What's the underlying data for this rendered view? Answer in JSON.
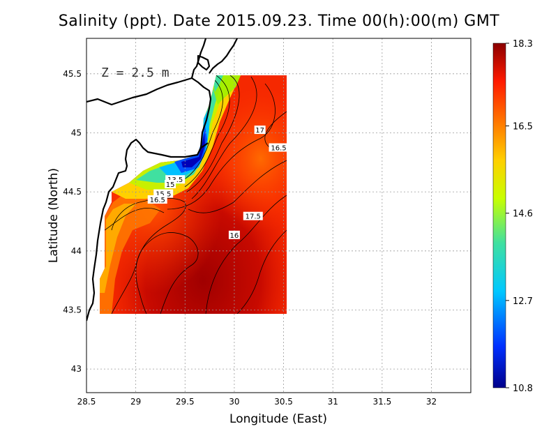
{
  "title": "Salinity (ppt). Date 2015.09.23. Time 00(h):00(m) GMT",
  "depth_label": "Z = 2.5 m",
  "chart_data": {
    "type": "heatmap",
    "title": "Salinity (ppt). Date 2015.09.23. Time 00(h):00(m) GMT",
    "xlabel": "Longitude (East)",
    "ylabel": "Latitude (North)",
    "xlim": [
      28.5,
      32.4
    ],
    "ylim": [
      42.8,
      45.8
    ],
    "x_ticks": [
      "28.5",
      "29",
      "29.5",
      "30",
      "30.5",
      "31",
      "31.5",
      "32"
    ],
    "x_tick_values": [
      28.5,
      29,
      29.5,
      30,
      30.5,
      31,
      31.5,
      32
    ],
    "y_ticks": [
      "43",
      "43.5",
      "44",
      "44.5",
      "45",
      "45.5"
    ],
    "y_tick_values": [
      43,
      43.5,
      44,
      44.5,
      45,
      45.5
    ],
    "grid": true,
    "data_extent": {
      "lon": [
        28.65,
        30.55
      ],
      "lat": [
        43.5,
        45.5
      ]
    },
    "colorbar": {
      "min": 10.8,
      "max": 18.3,
      "tick_labels": [
        "18.3",
        "16.5",
        "14.6",
        "12.7",
        "10.8"
      ],
      "tick_values": [
        18.3,
        16.5,
        14.6,
        12.7,
        10.8
      ]
    },
    "contour_labels": [
      {
        "text": "17",
        "lon": 30.26,
        "lat": 45.02
      },
      {
        "text": "16.5",
        "lon": 30.45,
        "lat": 44.87
      },
      {
        "text": "13.5",
        "lon": 29.4,
        "lat": 44.6
      },
      {
        "text": "15",
        "lon": 29.35,
        "lat": 44.56
      },
      {
        "text": "15.5",
        "lon": 29.28,
        "lat": 44.48
      },
      {
        "text": "16.5",
        "lon": 29.22,
        "lat": 44.43
      },
      {
        "text": "17.5",
        "lon": 30.19,
        "lat": 44.29
      },
      {
        "text": "16",
        "lon": 30.0,
        "lat": 44.13
      }
    ]
  },
  "colors": {
    "low": "#0000b0",
    "high": "#8b0000",
    "mid": "#ff3a00"
  }
}
